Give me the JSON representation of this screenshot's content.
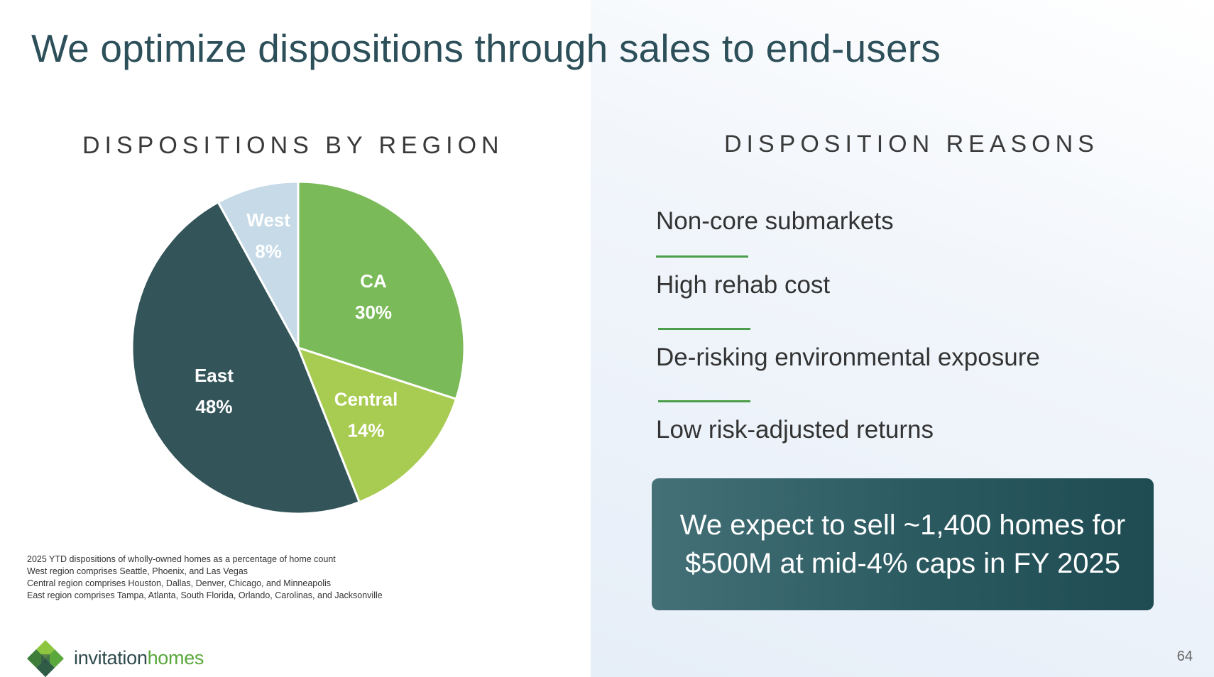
{
  "slide": {
    "title": "We optimize dispositions through sales to end-users",
    "page_number": "64"
  },
  "left": {
    "heading": "DISPOSITIONS BY REGION"
  },
  "chart_data": {
    "type": "pie",
    "title": "DISPOSITIONS BY REGION",
    "start_angle_deg": 0,
    "direction": "clockwise",
    "slices": [
      {
        "label": "CA",
        "value": 30,
        "value_label": "30%",
        "color": "#7aba58"
      },
      {
        "label": "Central",
        "value": 14,
        "value_label": "14%",
        "color": "#a8cb52"
      },
      {
        "label": "East",
        "value": 48,
        "value_label": "48%",
        "color": "#335559"
      },
      {
        "label": "West",
        "value": 8,
        "value_label": "8%",
        "color": "#c6dae8"
      }
    ]
  },
  "footnotes": [
    "2025 YTD dispositions of wholly-owned homes as a percentage of home count",
    "West region comprises Seattle, Phoenix, and Las Vegas",
    "Central region comprises Houston, Dallas, Denver, Chicago, and Minneapolis",
    "East region comprises Tampa, Atlanta, South Florida, Orlando, Carolinas, and Jacksonville"
  ],
  "right": {
    "heading": "DISPOSITION REASONS",
    "reasons": [
      "Non-core submarkets",
      "High rehab cost",
      "De-risking environmental exposure",
      "Low risk-adjusted returns"
    ],
    "divider_color": "#4a9e4a",
    "callout": "We expect to sell ~1,400 homes for $500M at mid-4% caps in FY 2025"
  },
  "logo": {
    "icon": "diamond-cluster-logo-icon",
    "word1": "invitation",
    "word2": "homes"
  }
}
